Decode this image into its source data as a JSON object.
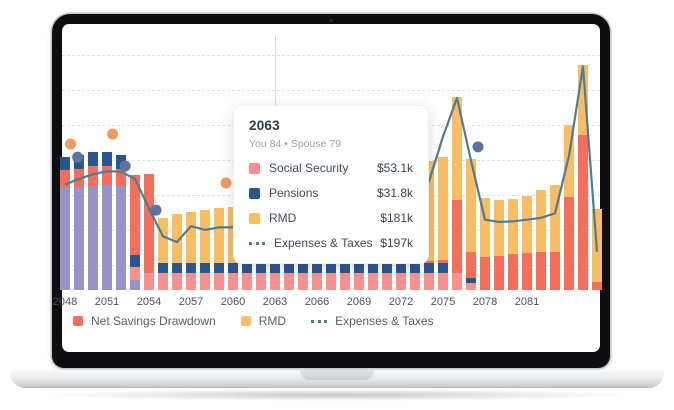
{
  "colors": {
    "purple": "#9894c7",
    "pink": "#f7908f",
    "red": "#f56d5b",
    "navy": "#2a5593",
    "yellow": "#f9be63",
    "line": "#4d7d93",
    "dot_orange": "#f09a62",
    "dot_navy": "#5e72a2",
    "grid": "#e0e1e4",
    "axis_text": "#49535f"
  },
  "tooltip": {
    "title": "2063",
    "subtitle": "You 84 • Spouse 79",
    "rows": [
      {
        "label": "Social Security",
        "value": "$53.1k",
        "swatch": "pink"
      },
      {
        "label": "Pensions",
        "value": "$31.8k",
        "swatch": "navy"
      },
      {
        "label": "RMD",
        "value": "$181k",
        "swatch": "yellow"
      },
      {
        "label": "Expenses & Taxes",
        "value": "$197k",
        "swatch": "dashes"
      }
    ]
  },
  "legend": {
    "items": [
      {
        "label": "Net Savings Drawdown",
        "swatch": "red"
      },
      {
        "label": "RMD",
        "swatch": "yellow"
      },
      {
        "label": "Expenses & Taxes",
        "swatch": "dashes"
      }
    ]
  },
  "chart_data": {
    "type": "bar",
    "subtype": "stacked-bars-with-line-and-scatter",
    "title": "",
    "xlabel": "",
    "ylabel": "",
    "units": "USD thousands per year",
    "ylim": [
      0,
      760
    ],
    "grid": "horizontal-dashed",
    "y_axis_labels_visible": false,
    "x_ticks": [
      "2048",
      "2051",
      "2054",
      "2057",
      "2060",
      "2063",
      "2066",
      "2069",
      "2072",
      "2075",
      "2078",
      "2081"
    ],
    "series_legend": {
      "red": "Net Savings Drawdown",
      "yellow": "RMD",
      "pink": "Social Security",
      "navy": "Pensions",
      "purple": "(unlabeled savings segment)",
      "line": "Expenses & Taxes"
    },
    "bars": [
      {
        "year": 2048,
        "stack": [
          [
            "purple",
            320
          ],
          [
            "red",
            55
          ],
          [
            "navy",
            42
          ]
        ]
      },
      {
        "year": 2049,
        "stack": [
          [
            "purple",
            322
          ],
          [
            "red",
            58
          ],
          [
            "navy",
            43
          ]
        ]
      },
      {
        "year": 2050,
        "stack": [
          [
            "purple",
            325
          ],
          [
            "red",
            62
          ],
          [
            "navy",
            44
          ]
        ]
      },
      {
        "year": 2051,
        "stack": [
          [
            "purple",
            327
          ],
          [
            "red",
            60
          ],
          [
            "navy",
            44
          ]
        ]
      },
      {
        "year": 2052,
        "stack": [
          [
            "purple",
            324
          ],
          [
            "red",
            56
          ],
          [
            "navy",
            42
          ]
        ]
      },
      {
        "year": 2053,
        "stack": [
          [
            "purple",
            31
          ],
          [
            "pink",
            40
          ],
          [
            "navy",
            38
          ],
          [
            "red",
            250
          ]
        ]
      },
      {
        "year": 2054,
        "stack": [
          [
            "pink",
            53
          ],
          [
            "red",
            310
          ]
        ]
      },
      {
        "year": 2055,
        "stack": [
          [
            "pink",
            53
          ],
          [
            "navy",
            32
          ],
          [
            "yellow",
            140
          ]
        ]
      },
      {
        "year": 2056,
        "stack": [
          [
            "pink",
            53
          ],
          [
            "navy",
            32
          ],
          [
            "yellow",
            152
          ]
        ]
      },
      {
        "year": 2057,
        "stack": [
          [
            "pink",
            53
          ],
          [
            "navy",
            32
          ],
          [
            "yellow",
            158
          ]
        ]
      },
      {
        "year": 2058,
        "stack": [
          [
            "pink",
            53
          ],
          [
            "navy",
            32
          ],
          [
            "yellow",
            165
          ]
        ]
      },
      {
        "year": 2059,
        "stack": [
          [
            "pink",
            53
          ],
          [
            "navy",
            32
          ],
          [
            "yellow",
            172
          ]
        ]
      },
      {
        "year": 2060,
        "stack": [
          [
            "pink",
            53
          ],
          [
            "navy",
            32
          ],
          [
            "yellow",
            176
          ]
        ]
      },
      {
        "year": 2061,
        "stack": [
          [
            "pink",
            53
          ],
          [
            "navy",
            32
          ],
          [
            "yellow",
            178
          ]
        ]
      },
      {
        "year": 2062,
        "stack": [
          [
            "pink",
            53
          ],
          [
            "navy",
            32
          ],
          [
            "yellow",
            180
          ]
        ]
      },
      {
        "year": 2063,
        "stack": [
          [
            "pink",
            53.1
          ],
          [
            "navy",
            31.8
          ],
          [
            "yellow",
            181
          ]
        ]
      },
      {
        "year": 2064,
        "stack": [
          [
            "pink",
            53
          ],
          [
            "navy",
            32
          ],
          [
            "yellow",
            183
          ]
        ]
      },
      {
        "year": 2065,
        "stack": [
          [
            "pink",
            53
          ],
          [
            "navy",
            32
          ],
          [
            "yellow",
            185
          ]
        ]
      },
      {
        "year": 2066,
        "stack": [
          [
            "pink",
            53
          ],
          [
            "navy",
            32
          ],
          [
            "yellow",
            187
          ]
        ]
      },
      {
        "year": 2067,
        "stack": [
          [
            "pink",
            53
          ],
          [
            "navy",
            32
          ],
          [
            "yellow",
            189
          ]
        ]
      },
      {
        "year": 2068,
        "stack": [
          [
            "pink",
            53
          ],
          [
            "navy",
            32
          ],
          [
            "yellow",
            191
          ]
        ]
      },
      {
        "year": 2069,
        "stack": [
          [
            "pink",
            53
          ],
          [
            "navy",
            32
          ],
          [
            "yellow",
            193
          ]
        ]
      },
      {
        "year": 2070,
        "stack": [
          [
            "pink",
            53
          ],
          [
            "navy",
            32
          ],
          [
            "yellow",
            196
          ]
        ]
      },
      {
        "year": 2071,
        "stack": [
          [
            "pink",
            53
          ],
          [
            "navy",
            32
          ],
          [
            "yellow",
            199
          ]
        ]
      },
      {
        "year": 2072,
        "stack": [
          [
            "pink",
            53
          ],
          [
            "navy",
            32
          ],
          [
            "yellow",
            290
          ]
        ]
      },
      {
        "year": 2073,
        "stack": [
          [
            "pink",
            53
          ],
          [
            "navy",
            32
          ],
          [
            "yellow",
            305
          ]
        ]
      },
      {
        "year": 2074,
        "stack": [
          [
            "pink",
            53
          ],
          [
            "navy",
            31
          ],
          [
            "red",
            8
          ],
          [
            "yellow",
            312
          ]
        ]
      },
      {
        "year": 2075,
        "stack": [
          [
            "pink",
            53
          ],
          [
            "navy",
            31
          ],
          [
            "red",
            10
          ],
          [
            "yellow",
            322
          ]
        ]
      },
      {
        "year": 2076,
        "stack": [
          [
            "pink",
            53
          ],
          [
            "red",
            230
          ],
          [
            "yellow",
            320
          ]
        ]
      },
      {
        "year": 2077,
        "stack": [
          [
            "pink",
            22
          ],
          [
            "navy",
            16
          ],
          [
            "red",
            82
          ],
          [
            "yellow",
            290
          ]
        ]
      },
      {
        "year": 2078,
        "stack": [
          [
            "red",
            103
          ],
          [
            "yellow",
            185
          ]
        ]
      },
      {
        "year": 2079,
        "stack": [
          [
            "red",
            105
          ],
          [
            "yellow",
            178
          ]
        ]
      },
      {
        "year": 2080,
        "stack": [
          [
            "red",
            113
          ],
          [
            "yellow",
            172
          ]
        ]
      },
      {
        "year": 2081,
        "stack": [
          [
            "red",
            115
          ],
          [
            "yellow",
            180
          ]
        ]
      },
      {
        "year": 2082,
        "stack": [
          [
            "red",
            118
          ],
          [
            "yellow",
            195
          ]
        ]
      },
      {
        "year": 2083,
        "stack": [
          [
            "red",
            120
          ],
          [
            "yellow",
            209
          ]
        ]
      },
      {
        "year": 2084,
        "stack": [
          [
            "red",
            292
          ],
          [
            "yellow",
            224
          ]
        ]
      },
      {
        "year": 2085,
        "stack": [
          [
            "red",
            486
          ],
          [
            "yellow",
            218
          ]
        ]
      },
      {
        "year": 2086,
        "stack": [
          [
            "red",
            25
          ],
          [
            "yellow",
            230
          ]
        ]
      }
    ],
    "line": {
      "name": "Expenses & Taxes",
      "points": [
        [
          2048,
          330
        ],
        [
          2049,
          348
        ],
        [
          2050,
          362
        ],
        [
          2051,
          372
        ],
        [
          2052,
          370
        ],
        [
          2053,
          348
        ],
        [
          2054,
          255
        ],
        [
          2055,
          168
        ],
        [
          2056,
          150
        ],
        [
          2057,
          200
        ],
        [
          2058,
          188
        ],
        [
          2059,
          196
        ],
        [
          2060,
          196
        ],
        [
          2061,
          196
        ],
        [
          2062,
          196
        ],
        [
          2063,
          197
        ],
        [
          2064,
          198
        ],
        [
          2065,
          199
        ],
        [
          2066,
          201
        ],
        [
          2067,
          203
        ],
        [
          2068,
          205
        ],
        [
          2069,
          207
        ],
        [
          2070,
          210
        ],
        [
          2071,
          218
        ],
        [
          2072,
          235
        ],
        [
          2073,
          260
        ],
        [
          2074,
          340
        ],
        [
          2075,
          480
        ],
        [
          2076,
          601
        ],
        [
          2077,
          405
        ],
        [
          2078,
          220
        ],
        [
          2079,
          213
        ],
        [
          2080,
          215
        ],
        [
          2081,
          220
        ],
        [
          2082,
          226
        ],
        [
          2083,
          240
        ],
        [
          2084,
          420
        ],
        [
          2085,
          700
        ],
        [
          2086,
          120
        ]
      ]
    },
    "dots": [
      {
        "year": 2048.4,
        "value": 457,
        "color": "dot_orange"
      },
      {
        "year": 2051.4,
        "value": 488,
        "color": "dot_orange"
      },
      {
        "year": 2048.9,
        "value": 416,
        "color": "dot_navy"
      },
      {
        "year": 2052.3,
        "value": 388,
        "color": "dot_navy"
      },
      {
        "year": 2054.5,
        "value": 250,
        "color": "dot_navy"
      },
      {
        "year": 2059.5,
        "value": 335,
        "color": "dot_orange"
      },
      {
        "year": 2077.5,
        "value": 448,
        "color": "dot_navy"
      }
    ]
  }
}
